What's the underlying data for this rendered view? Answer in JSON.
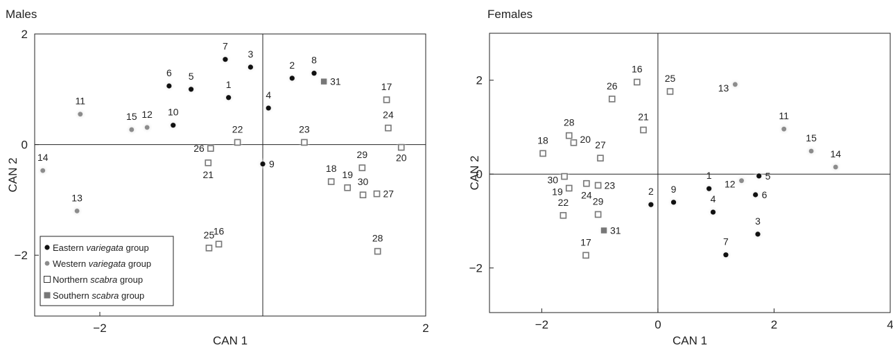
{
  "chart_data": [
    {
      "type": "scatter",
      "title": "Males",
      "xlabel": "CAN 1",
      "ylabel": "CAN 2",
      "xlim": [
        -2.8,
        2.0
      ],
      "ylim": [
        -3.1,
        2.0
      ],
      "xticks": [
        -2,
        2
      ],
      "yticks": [
        -2,
        0,
        2
      ],
      "reference_lines": {
        "x": 0,
        "y": 0
      },
      "legend": {
        "position": "bottom-left",
        "entries": [
          {
            "group": "eastern",
            "prefix": "Eastern ",
            "italic": "variegata",
            "suffix": " group"
          },
          {
            "group": "western",
            "prefix": "Western ",
            "italic": "variegata",
            "suffix": " group"
          },
          {
            "group": "northern",
            "prefix": "Northern ",
            "italic": "scabra",
            "suffix": " group"
          },
          {
            "group": "southern",
            "prefix": "Southern ",
            "italic": "scabra",
            "suffix": " group"
          }
        ]
      },
      "series": [
        {
          "group": "eastern",
          "points": [
            {
              "label": "1",
              "x": -0.42,
              "y": 0.85
            },
            {
              "label": "2",
              "x": 0.36,
              "y": 1.2
            },
            {
              "label": "3",
              "x": -0.15,
              "y": 1.4
            },
            {
              "label": "4",
              "x": 0.07,
              "y": 0.66
            },
            {
              "label": "5",
              "x": -0.88,
              "y": 1.0
            },
            {
              "label": "6",
              "x": -1.15,
              "y": 1.06
            },
            {
              "label": "7",
              "x": -0.46,
              "y": 1.54
            },
            {
              "label": "8",
              "x": 0.63,
              "y": 1.29
            },
            {
              "label": "9",
              "x": 0.0,
              "y": -0.35
            },
            {
              "label": "10",
              "x": -1.1,
              "y": 0.35
            }
          ]
        },
        {
          "group": "western",
          "points": [
            {
              "label": "11",
              "x": -2.24,
              "y": 0.55
            },
            {
              "label": "12",
              "x": -1.42,
              "y": 0.31
            },
            {
              "label": "13",
              "x": -2.28,
              "y": -1.2
            },
            {
              "label": "14",
              "x": -2.7,
              "y": -0.47
            },
            {
              "label": "15",
              "x": -1.61,
              "y": 0.27
            }
          ]
        },
        {
          "group": "northern",
          "points": [
            {
              "label": "16",
              "x": -0.54,
              "y": -1.8
            },
            {
              "label": "17",
              "x": 1.52,
              "y": 0.81
            },
            {
              "label": "18",
              "x": 0.84,
              "y": -0.67
            },
            {
              "label": "19",
              "x": 1.04,
              "y": -0.78
            },
            {
              "label": "20",
              "x": 1.7,
              "y": -0.05
            },
            {
              "label": "21",
              "x": -0.67,
              "y": -0.33
            },
            {
              "label": "22",
              "x": -0.31,
              "y": 0.04
            },
            {
              "label": "23",
              "x": 0.51,
              "y": 0.04
            },
            {
              "label": "24",
              "x": 1.54,
              "y": 0.3
            },
            {
              "label": "25",
              "x": -0.66,
              "y": -1.87
            },
            {
              "label": "26",
              "x": -0.64,
              "y": -0.07
            },
            {
              "label": "27",
              "x": 1.4,
              "y": -0.89
            },
            {
              "label": "28",
              "x": 1.41,
              "y": -1.93
            },
            {
              "label": "29",
              "x": 1.22,
              "y": -0.42
            },
            {
              "label": "30",
              "x": 1.23,
              "y": -0.91
            }
          ]
        },
        {
          "group": "southern",
          "points": [
            {
              "label": "31",
              "x": 0.75,
              "y": 1.14
            }
          ]
        }
      ]
    },
    {
      "type": "scatter",
      "title": "Females",
      "xlabel": "CAN 1",
      "ylabel": "CAN 2",
      "xlim": [
        -2.9,
        4.0
      ],
      "ylim": [
        -2.95,
        3.0
      ],
      "xticks": [
        -2,
        0,
        2,
        4
      ],
      "yticks": [
        -2,
        0,
        2
      ],
      "reference_lines": {
        "x": 0,
        "y": 0
      },
      "series": [
        {
          "group": "eastern",
          "points": [
            {
              "label": "1",
              "x": 0.88,
              "y": -0.31
            },
            {
              "label": "2",
              "x": -0.12,
              "y": -0.65
            },
            {
              "label": "3",
              "x": 1.72,
              "y": -1.28
            },
            {
              "label": "4",
              "x": 0.95,
              "y": -0.81
            },
            {
              "label": "5",
              "x": 1.74,
              "y": -0.04
            },
            {
              "label": "6",
              "x": 1.68,
              "y": -0.44
            },
            {
              "label": "7",
              "x": 1.17,
              "y": -1.72
            },
            {
              "label": "9",
              "x": 0.27,
              "y": -0.6
            }
          ]
        },
        {
          "group": "western",
          "points": [
            {
              "label": "11",
              "x": 2.17,
              "y": 0.96
            },
            {
              "label": "12",
              "x": 1.44,
              "y": -0.14
            },
            {
              "label": "13",
              "x": 1.33,
              "y": 1.91
            },
            {
              "label": "14",
              "x": 3.06,
              "y": 0.15
            },
            {
              "label": "15",
              "x": 2.64,
              "y": 0.49
            }
          ]
        },
        {
          "group": "northern",
          "points": [
            {
              "label": "16",
              "x": -0.36,
              "y": 1.96
            },
            {
              "label": "17",
              "x": -1.24,
              "y": -1.73
            },
            {
              "label": "18",
              "x": -1.98,
              "y": 0.44
            },
            {
              "label": "19",
              "x": -1.53,
              "y": -0.3
            },
            {
              "label": "20",
              "x": -1.45,
              "y": 0.67
            },
            {
              "label": "21",
              "x": -0.25,
              "y": 0.94
            },
            {
              "label": "22",
              "x": -1.63,
              "y": -0.88
            },
            {
              "label": "23",
              "x": -1.03,
              "y": -0.24
            },
            {
              "label": "24",
              "x": -1.23,
              "y": -0.2
            },
            {
              "label": "25",
              "x": 0.21,
              "y": 1.76
            },
            {
              "label": "26",
              "x": -0.79,
              "y": 1.6
            },
            {
              "label": "27",
              "x": -0.99,
              "y": 0.34
            },
            {
              "label": "28",
              "x": -1.53,
              "y": 0.82
            },
            {
              "label": "29",
              "x": -1.03,
              "y": -0.86
            },
            {
              "label": "30",
              "x": -1.61,
              "y": -0.05
            }
          ]
        },
        {
          "group": "southern",
          "points": [
            {
              "label": "31",
              "x": -0.93,
              "y": -1.2
            }
          ]
        }
      ]
    }
  ]
}
